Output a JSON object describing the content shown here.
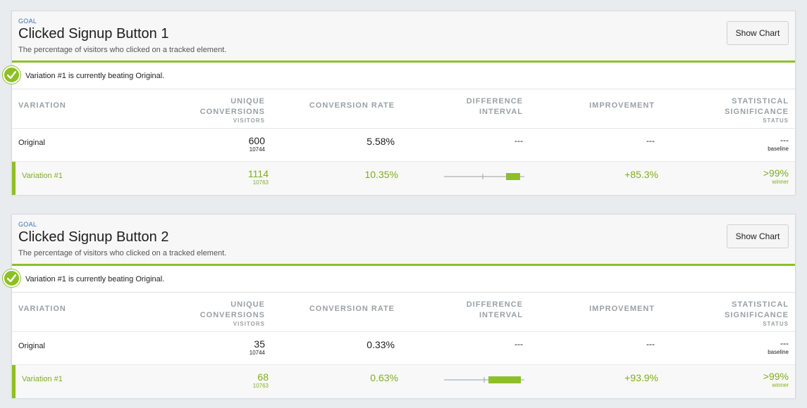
{
  "goals": [
    {
      "goal_label": "GOAL",
      "title": "Clicked Signup Button 1",
      "description": "The percentage of visitors who clicked on a tracked element.",
      "show_chart_label": "Show Chart",
      "status_message": "Variation #1 is currently beating Original.",
      "columns": {
        "variation": "VARIATION",
        "unique_l1": "UNIQUE",
        "unique_l2": "CONVERSIONS",
        "unique_sub": "VISITORS",
        "rate": "CONVERSION RATE",
        "diff_l1": "DIFFERENCE",
        "diff_l2": "INTERVAL",
        "improvement": "IMPROVEMENT",
        "sig_l1": "STATISTICAL",
        "sig_l2": "SIGNIFICANCE",
        "sig_sub": "STATUS"
      },
      "rows": [
        {
          "name": "Original",
          "conversions": "600",
          "visitors": "10744",
          "rate": "5.58%",
          "interval": "---",
          "improvement": "---",
          "significance": "---",
          "status": "baseline"
        },
        {
          "name": "Variation #1",
          "conversions": "1114",
          "visitors": "10763",
          "rate": "10.35%",
          "interval": "",
          "improvement": "+85.3%",
          "significance": ">99%",
          "status": "winner"
        }
      ]
    },
    {
      "goal_label": "GOAL",
      "title": "Clicked Signup Button 2",
      "description": "The percentage of visitors who clicked on a tracked element.",
      "show_chart_label": "Show Chart",
      "status_message": "Variation #1 is currently beating Original.",
      "columns": {
        "variation": "VARIATION",
        "unique_l1": "UNIQUE",
        "unique_l2": "CONVERSIONS",
        "unique_sub": "VISITORS",
        "rate": "CONVERSION RATE",
        "diff_l1": "DIFFERENCE",
        "diff_l2": "INTERVAL",
        "improvement": "IMPROVEMENT",
        "sig_l1": "STATISTICAL",
        "sig_l2": "SIGNIFICANCE",
        "sig_sub": "STATUS"
      },
      "rows": [
        {
          "name": "Original",
          "conversions": "35",
          "visitors": "10744",
          "rate": "0.33%",
          "interval": "---",
          "improvement": "---",
          "significance": "---",
          "status": "baseline"
        },
        {
          "name": "Variation #1",
          "conversions": "68",
          "visitors": "10763",
          "rate": "0.63%",
          "interval": "",
          "improvement": "+93.9%",
          "significance": ">99%",
          "status": "winner"
        }
      ]
    }
  ],
  "colors": {
    "accent_green": "#8dc026",
    "goal_blue": "#3d6fb6"
  }
}
